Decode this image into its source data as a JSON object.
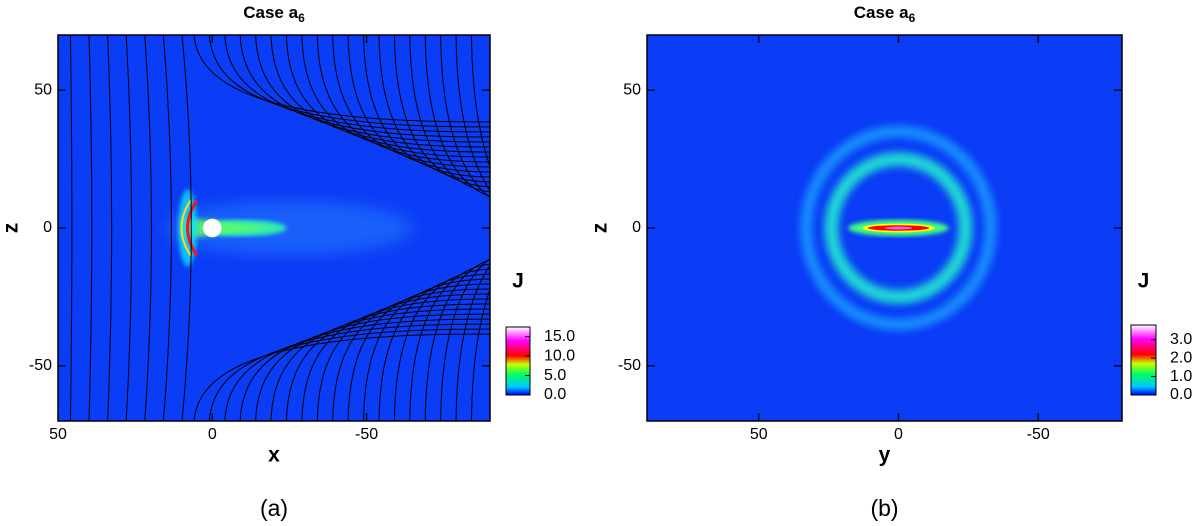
{
  "chart_data": [
    {
      "type": "heatmap",
      "title": "Case a",
      "title_subscript": "6",
      "panel_label": "(a)",
      "xlabel": "x",
      "ylabel": "z",
      "xlim": [
        50,
        -90
      ],
      "ylim": [
        -70,
        70
      ],
      "xticks": [
        50,
        0,
        -50
      ],
      "yticks": [
        -50,
        0,
        50
      ],
      "streamlines": true,
      "colorbar": {
        "label": "J",
        "lim": [
          0,
          17.5
        ],
        "ticks": [
          {
            "value": 0,
            "label": "0.0"
          },
          {
            "value": 5,
            "label": "5.0"
          },
          {
            "value": 10,
            "label": "10.0"
          },
          {
            "value": 15,
            "label": "15.0"
          }
        ]
      }
    },
    {
      "type": "heatmap",
      "title": "Case a",
      "title_subscript": "6",
      "panel_label": "(b)",
      "xlabel": "y",
      "ylabel": "z",
      "xlim": [
        90,
        -80
      ],
      "ylim": [
        -70,
        70
      ],
      "xticks": [
        50,
        0,
        -50
      ],
      "yticks": [
        -50,
        0,
        50
      ],
      "streamlines": false,
      "colorbar": {
        "label": "J",
        "lim": [
          0,
          3.8
        ],
        "ticks": [
          {
            "value": 0,
            "label": "0.0"
          },
          {
            "value": 1,
            "label": "1.0"
          },
          {
            "value": 2,
            "label": "2.0"
          },
          {
            "value": 3,
            "label": "3.0"
          }
        ]
      }
    }
  ]
}
